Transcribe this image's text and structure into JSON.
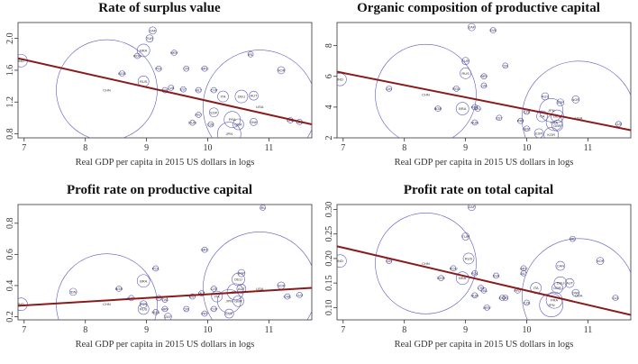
{
  "colors": {
    "bubble": "#5b5bbf",
    "fit_line": "#8b1a1a"
  },
  "chart_data": [
    {
      "type": "scatter",
      "title": "Rate of surplus value",
      "xlabel": "Real GDP per capita in 2015 US dollars in logs",
      "ylabel": "",
      "xlim": [
        6.9,
        11.7
      ],
      "ylim": [
        0.75,
        2.2
      ],
      "xticks": [
        7,
        8,
        9,
        10,
        11
      ],
      "yticks": [
        0.8,
        1.2,
        1.6,
        2.0
      ],
      "ytick_labels": [
        "0.8",
        "1.2",
        "1.6",
        "2.0"
      ],
      "fit_line": {
        "x": [
          6.9,
          11.7
        ],
        "y": [
          1.75,
          0.92
        ]
      },
      "points": [
        {
          "label": "IND",
          "x": 6.95,
          "y": 1.72,
          "r": 7
        },
        {
          "label": "CHN",
          "x": 8.35,
          "y": 1.35,
          "r": 56
        },
        {
          "label": "BGR",
          "x": 8.6,
          "y": 1.56,
          "r": 3
        },
        {
          "label": "BRA",
          "x": 8.95,
          "y": 1.85,
          "r": 7
        },
        {
          "label": "RUS",
          "x": 8.95,
          "y": 1.46,
          "r": 6
        },
        {
          "label": "ROU",
          "x": 8.85,
          "y": 1.78,
          "r": 3
        },
        {
          "label": "ZAF",
          "x": 9.1,
          "y": 2.1,
          "r": 4
        },
        {
          "label": "TUR",
          "x": 9.05,
          "y": 2.0,
          "r": 4
        },
        {
          "label": "HRV",
          "x": 9.45,
          "y": 1.82,
          "r": 3
        },
        {
          "label": "POL",
          "x": 9.2,
          "y": 1.62,
          "r": 3
        },
        {
          "label": "CRI",
          "x": 9.65,
          "y": 1.62,
          "r": 3
        },
        {
          "label": "GRC",
          "x": 9.95,
          "y": 1.62,
          "r": 3
        },
        {
          "label": "LVA",
          "x": 9.4,
          "y": 1.38,
          "r": 3
        },
        {
          "label": "EST",
          "x": 9.6,
          "y": 1.36,
          "r": 3
        },
        {
          "label": "SVK",
          "x": 9.3,
          "y": 1.35,
          "r": 3
        },
        {
          "label": "MLT",
          "x": 9.85,
          "y": 1.35,
          "r": 3
        },
        {
          "label": "CYP",
          "x": 10.1,
          "y": 1.35,
          "r": 3
        },
        {
          "label": "IRL",
          "x": 10.7,
          "y": 1.8,
          "r": 3
        },
        {
          "label": "NOR",
          "x": 11.2,
          "y": 1.6,
          "r": 4
        },
        {
          "label": "ITA",
          "x": 10.25,
          "y": 1.27,
          "r": 6
        },
        {
          "label": "DEU",
          "x": 10.55,
          "y": 1.27,
          "r": 7
        },
        {
          "label": "AUT",
          "x": 10.75,
          "y": 1.28,
          "r": 5
        },
        {
          "label": "USA",
          "x": 10.85,
          "y": 1.14,
          "r": 63
        },
        {
          "label": "PRT",
          "x": 9.85,
          "y": 1.04,
          "r": 3
        },
        {
          "label": "HUN",
          "x": 9.75,
          "y": 0.94,
          "r": 3
        },
        {
          "label": "DNK",
          "x": 10.75,
          "y": 0.95,
          "r": 4
        },
        {
          "label": "GBR",
          "x": 10.5,
          "y": 0.92,
          "r": 6
        },
        {
          "label": "CZE",
          "x": 10.05,
          "y": 0.92,
          "r": 3
        },
        {
          "label": "FRA",
          "x": 10.4,
          "y": 0.98,
          "r": 9
        },
        {
          "label": "CHE",
          "x": 11.35,
          "y": 0.97,
          "r": 3
        },
        {
          "label": "LUX",
          "x": 11.5,
          "y": 0.95,
          "r": 3
        },
        {
          "label": "JPN",
          "x": 10.35,
          "y": 0.8,
          "r": 13
        },
        {
          "label": "ESP",
          "x": 10.1,
          "y": 1.07,
          "r": 5
        }
      ]
    },
    {
      "type": "scatter",
      "title": "Organic composition of productive capital",
      "xlabel": "Real GDP per capita in 2015 US dollars in logs",
      "ylabel": "",
      "xlim": [
        6.9,
        11.7
      ],
      "ylim": [
        2,
        9.5
      ],
      "xticks": [
        7,
        8,
        9,
        10,
        11
      ],
      "yticks": [
        2,
        4,
        6,
        8
      ],
      "ytick_labels": [
        "2",
        "4",
        "6",
        "8"
      ],
      "fit_line": {
        "x": [
          6.9,
          11.7
        ],
        "y": [
          6.3,
          2.5
        ]
      },
      "points": [
        {
          "label": "IND",
          "x": 6.95,
          "y": 5.8,
          "r": 7
        },
        {
          "label": "CHN",
          "x": 8.35,
          "y": 4.8,
          "r": 56
        },
        {
          "label": "BGR",
          "x": 8.55,
          "y": 3.9,
          "r": 3
        },
        {
          "label": "IDN",
          "x": 7.75,
          "y": 5.2,
          "r": 3
        },
        {
          "label": "BRA",
          "x": 8.95,
          "y": 3.9,
          "r": 7
        },
        {
          "label": "ROU",
          "x": 8.85,
          "y": 5.2,
          "r": 3
        },
        {
          "label": "RUS",
          "x": 9.0,
          "y": 6.2,
          "r": 6
        },
        {
          "label": "TUR",
          "x": 9.0,
          "y": 7.0,
          "r": 4
        },
        {
          "label": "ZAF",
          "x": 9.1,
          "y": 9.2,
          "r": 4
        },
        {
          "label": "SVK",
          "x": 9.45,
          "y": 9.0,
          "r": 3
        },
        {
          "label": "HRV",
          "x": 9.3,
          "y": 6.0,
          "r": 3
        },
        {
          "label": "LVA",
          "x": 9.3,
          "y": 5.4,
          "r": 3
        },
        {
          "label": "CRI",
          "x": 9.65,
          "y": 6.7,
          "r": 3
        },
        {
          "label": "POL",
          "x": 9.15,
          "y": 4.0,
          "r": 3
        },
        {
          "label": "LTU",
          "x": 9.2,
          "y": 3.9,
          "r": 3
        },
        {
          "label": "EST",
          "x": 9.55,
          "y": 3.3,
          "r": 3
        },
        {
          "label": "HUN",
          "x": 9.15,
          "y": 3.0,
          "r": 3
        },
        {
          "label": "PRT",
          "x": 9.9,
          "y": 3.1,
          "r": 3
        },
        {
          "label": "CZE",
          "x": 10.0,
          "y": 3.7,
          "r": 3
        },
        {
          "label": "GRC",
          "x": 10.0,
          "y": 2.6,
          "r": 3
        },
        {
          "label": "ITA",
          "x": 10.25,
          "y": 3.4,
          "r": 6
        },
        {
          "label": "JPN",
          "x": 10.4,
          "y": 3.8,
          "r": 13
        },
        {
          "label": "AUS",
          "x": 10.3,
          "y": 4.7,
          "r": 4
        },
        {
          "label": "SGP",
          "x": 10.55,
          "y": 4.3,
          "r": 4
        },
        {
          "label": "NOR",
          "x": 10.8,
          "y": 4.5,
          "r": 4
        },
        {
          "label": "DEU",
          "x": 10.5,
          "y": 3.4,
          "r": 7
        },
        {
          "label": "FRA",
          "x": 10.45,
          "y": 3.0,
          "r": 9
        },
        {
          "label": "GBR",
          "x": 10.5,
          "y": 2.8,
          "r": 6
        },
        {
          "label": "USA",
          "x": 10.85,
          "y": 3.3,
          "r": 63
        },
        {
          "label": "ESP",
          "x": 10.2,
          "y": 2.3,
          "r": 5
        },
        {
          "label": "KOR",
          "x": 10.4,
          "y": 2.2,
          "r": 8
        },
        {
          "label": "LUX",
          "x": 11.5,
          "y": 2.9,
          "r": 3
        }
      ]
    },
    {
      "type": "scatter",
      "title": "Profit rate on productive capital",
      "xlabel": "Real GDP per capita in 2015 US dollars in logs",
      "ylabel": "",
      "xlim": [
        6.9,
        11.7
      ],
      "ylim": [
        0.18,
        0.92
      ],
      "xticks": [
        7,
        8,
        9,
        10,
        11
      ],
      "yticks": [
        0.2,
        0.4,
        0.6,
        0.8
      ],
      "ytick_labels": [
        "0.2",
        "0.4",
        "0.6",
        "0.8"
      ],
      "fit_line": {
        "x": [
          6.9,
          11.7
        ],
        "y": [
          0.27,
          0.385
        ]
      },
      "points": [
        {
          "label": "IND",
          "x": 6.95,
          "y": 0.28,
          "r": 7
        },
        {
          "label": "CHN",
          "x": 8.35,
          "y": 0.28,
          "r": 56
        },
        {
          "label": "IDN",
          "x": 7.8,
          "y": 0.36,
          "r": 4
        },
        {
          "label": "BGR",
          "x": 8.55,
          "y": 0.38,
          "r": 3
        },
        {
          "label": "BRA",
          "x": 8.95,
          "y": 0.43,
          "r": 7
        },
        {
          "label": "ROU",
          "x": 8.75,
          "y": 0.32,
          "r": 3
        },
        {
          "label": "TUR",
          "x": 8.95,
          "y": 0.28,
          "r": 4
        },
        {
          "label": "RUS",
          "x": 8.95,
          "y": 0.25,
          "r": 6
        },
        {
          "label": "POL",
          "x": 9.15,
          "y": 0.51,
          "r": 3
        },
        {
          "label": "LTU",
          "x": 9.2,
          "y": 0.32,
          "r": 3
        },
        {
          "label": "LVA",
          "x": 9.3,
          "y": 0.31,
          "r": 3
        },
        {
          "label": "HRV",
          "x": 9.3,
          "y": 0.25,
          "r": 3
        },
        {
          "label": "HUN",
          "x": 9.15,
          "y": 0.23,
          "r": 3
        },
        {
          "label": "ZAF",
          "x": 9.35,
          "y": 0.2,
          "r": 4
        },
        {
          "label": "CRI",
          "x": 9.65,
          "y": 0.25,
          "r": 3
        },
        {
          "label": "PRT",
          "x": 9.95,
          "y": 0.22,
          "r": 3
        },
        {
          "label": "EST",
          "x": 9.75,
          "y": 0.33,
          "r": 3
        },
        {
          "label": "MLT",
          "x": 9.9,
          "y": 0.35,
          "r": 3
        },
        {
          "label": "GRC",
          "x": 9.95,
          "y": 0.63,
          "r": 3
        },
        {
          "label": "CZE",
          "x": 10.1,
          "y": 0.38,
          "r": 3
        },
        {
          "label": "ITA",
          "x": 10.15,
          "y": 0.33,
          "r": 6
        },
        {
          "label": "CYP",
          "x": 10.1,
          "y": 0.25,
          "r": 3
        },
        {
          "label": "JPN",
          "x": 10.35,
          "y": 0.3,
          "r": 13
        },
        {
          "label": "FRA",
          "x": 10.45,
          "y": 0.36,
          "r": 9
        },
        {
          "label": "DEU",
          "x": 10.5,
          "y": 0.44,
          "r": 7
        },
        {
          "label": "AUT",
          "x": 10.55,
          "y": 0.38,
          "r": 5
        },
        {
          "label": "GBR",
          "x": 10.5,
          "y": 0.3,
          "r": 6
        },
        {
          "label": "ESP",
          "x": 10.35,
          "y": 0.22,
          "r": 5
        },
        {
          "label": "SGP",
          "x": 10.55,
          "y": 0.48,
          "r": 4
        },
        {
          "label": "USA",
          "x": 10.85,
          "y": 0.38,
          "r": 63
        },
        {
          "label": "NOR",
          "x": 11.2,
          "y": 0.4,
          "r": 4
        },
        {
          "label": "CHE",
          "x": 11.3,
          "y": 0.33,
          "r": 3
        },
        {
          "label": "LUX",
          "x": 11.5,
          "y": 0.34,
          "r": 3
        },
        {
          "label": "IRL",
          "x": 10.9,
          "y": 0.9,
          "r": 3
        }
      ]
    },
    {
      "type": "scatter",
      "title": "Profit rate on total capital",
      "xlabel": "Real GDP per capita in 2015 US dollars in logs",
      "ylabel": "",
      "xlim": [
        6.9,
        11.7
      ],
      "ylim": [
        0.075,
        0.31
      ],
      "xticks": [
        7,
        8,
        9,
        10,
        11
      ],
      "yticks": [
        0.1,
        0.15,
        0.2,
        0.25,
        0.3
      ],
      "ytick_labels": [
        "0.10",
        "0.15",
        "0.20",
        "0.25",
        "0.30"
      ],
      "fit_line": {
        "x": [
          6.9,
          11.7
        ],
        "y": [
          0.225,
          0.085
        ]
      },
      "points": [
        {
          "label": "IND",
          "x": 6.95,
          "y": 0.195,
          "r": 7
        },
        {
          "label": "CHN",
          "x": 8.35,
          "y": 0.19,
          "r": 56
        },
        {
          "label": "IDN",
          "x": 7.75,
          "y": 0.195,
          "r": 3
        },
        {
          "label": "BGR",
          "x": 8.6,
          "y": 0.16,
          "r": 3
        },
        {
          "label": "ROU",
          "x": 8.8,
          "y": 0.18,
          "r": 3
        },
        {
          "label": "BRA",
          "x": 8.95,
          "y": 0.16,
          "r": 7
        },
        {
          "label": "TUR",
          "x": 9.0,
          "y": 0.245,
          "r": 4
        },
        {
          "label": "RUS",
          "x": 9.05,
          "y": 0.2,
          "r": 6
        },
        {
          "label": "ZAF",
          "x": 9.1,
          "y": 0.305,
          "r": 4
        },
        {
          "label": "POL",
          "x": 9.15,
          "y": 0.17,
          "r": 3
        },
        {
          "label": "LTU",
          "x": 9.25,
          "y": 0.14,
          "r": 3
        },
        {
          "label": "LVA",
          "x": 9.3,
          "y": 0.135,
          "r": 3
        },
        {
          "label": "HRV",
          "x": 9.35,
          "y": 0.1,
          "r": 3
        },
        {
          "label": "HUN",
          "x": 9.15,
          "y": 0.125,
          "r": 3
        },
        {
          "label": "EST",
          "x": 9.6,
          "y": 0.12,
          "r": 3
        },
        {
          "label": "SVK",
          "x": 9.5,
          "y": 0.165,
          "r": 3
        },
        {
          "label": "CRI",
          "x": 9.65,
          "y": 0.12,
          "r": 3
        },
        {
          "label": "PRT",
          "x": 9.85,
          "y": 0.135,
          "r": 3
        },
        {
          "label": "GRC",
          "x": 9.95,
          "y": 0.18,
          "r": 3
        },
        {
          "label": "MLT",
          "x": 9.95,
          "y": 0.17,
          "r": 3
        },
        {
          "label": "CZE",
          "x": 10.0,
          "y": 0.11,
          "r": 3
        },
        {
          "label": "ITA",
          "x": 10.15,
          "y": 0.14,
          "r": 6
        },
        {
          "label": "JPN",
          "x": 10.4,
          "y": 0.105,
          "r": 13
        },
        {
          "label": "FRA",
          "x": 10.45,
          "y": 0.115,
          "r": 9
        },
        {
          "label": "GBR",
          "x": 10.5,
          "y": 0.14,
          "r": 6
        },
        {
          "label": "DEU",
          "x": 10.55,
          "y": 0.15,
          "r": 7
        },
        {
          "label": "CAN",
          "x": 10.55,
          "y": 0.185,
          "r": 5
        },
        {
          "label": "AUT",
          "x": 10.7,
          "y": 0.15,
          "r": 5
        },
        {
          "label": "DNK",
          "x": 10.8,
          "y": 0.13,
          "r": 4
        },
        {
          "label": "USA",
          "x": 10.85,
          "y": 0.125,
          "r": 63
        },
        {
          "label": "NOR",
          "x": 11.2,
          "y": 0.195,
          "r": 4
        },
        {
          "label": "IRL",
          "x": 10.75,
          "y": 0.24,
          "r": 3
        },
        {
          "label": "LUX",
          "x": 11.45,
          "y": 0.12,
          "r": 3
        }
      ]
    }
  ]
}
